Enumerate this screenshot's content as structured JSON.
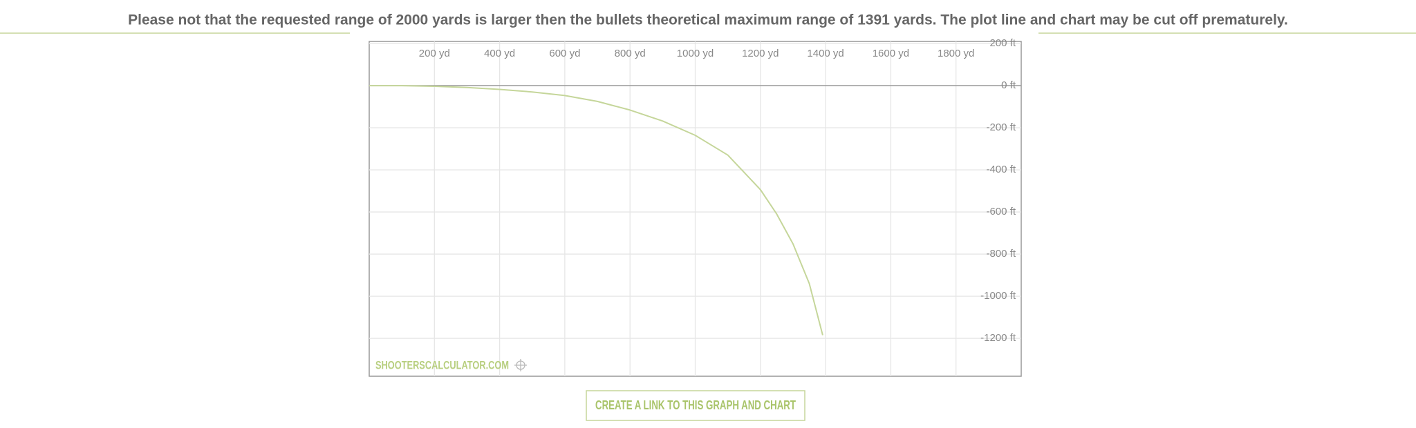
{
  "warning": "Please not that the requested range of 2000 yards is larger then the bullets theoretical maximum range of 1391 yards. The plot line and chart may be cut off prematurely.",
  "chart_data": {
    "type": "line",
    "xlim": [
      0,
      2000
    ],
    "xticks": [
      {
        "value": 200,
        "label": "200 yd"
      },
      {
        "value": 400,
        "label": "400 yd"
      },
      {
        "value": 600,
        "label": "600 yd"
      },
      {
        "value": 800,
        "label": "800 yd"
      },
      {
        "value": 1000,
        "label": "1000 yd"
      },
      {
        "value": 1200,
        "label": "1200 yd"
      },
      {
        "value": 1400,
        "label": "1400 yd"
      },
      {
        "value": 1600,
        "label": "1600 yd"
      },
      {
        "value": 1800,
        "label": "1800 yd"
      }
    ],
    "ylim": [
      -1380,
      210
    ],
    "yticks": [
      {
        "value": 200,
        "label": "200 ft"
      },
      {
        "value": 0,
        "label": "0 ft"
      },
      {
        "value": -200,
        "label": "-200 ft"
      },
      {
        "value": -400,
        "label": "-400 ft"
      },
      {
        "value": -600,
        "label": "-600 ft"
      },
      {
        "value": -800,
        "label": "-800 ft"
      },
      {
        "value": -1000,
        "label": "-1000 ft"
      },
      {
        "value": -1200,
        "label": "-1200 ft"
      }
    ],
    "grid": true,
    "series": [
      {
        "color": "#c5d69a",
        "x": [
          0,
          100,
          200,
          300,
          400,
          500,
          600,
          700,
          800,
          900,
          1000,
          1100,
          1200,
          1250,
          1300,
          1350,
          1391
        ],
        "values": [
          0,
          0,
          -3,
          -9,
          -18,
          -30,
          -47,
          -75,
          -116,
          -168,
          -236,
          -330,
          -494,
          -610,
          -752,
          -940,
          -1185
        ]
      }
    ]
  },
  "watermark": "SHOOTERSCALCULATOR.COM",
  "button": "CREATE A LINK TO THIS GRAPH AND CHART"
}
